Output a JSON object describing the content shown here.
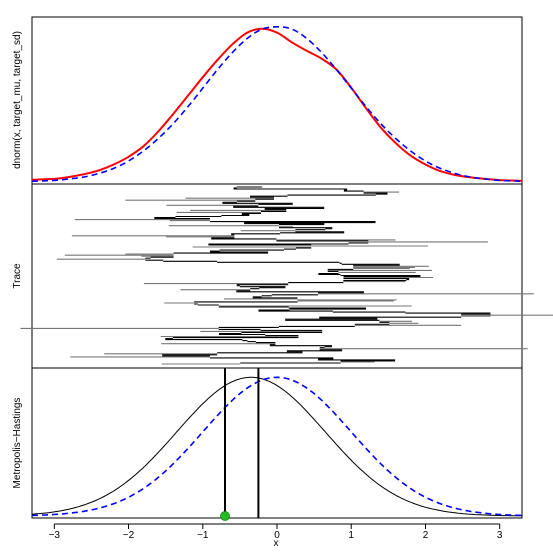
{
  "chart_data": [
    {
      "panel": "top",
      "type": "line",
      "ylabel": "dnorm(x, target_mu, target_sd)",
      "xlim": [
        -3.3,
        3.3
      ],
      "ylim": [
        0,
        0.42
      ],
      "series": [
        {
          "style": "solid",
          "color": "#ff0000",
          "x": [
            -3.3,
            -3.0,
            -2.8,
            -2.6,
            -2.4,
            -2.2,
            -2.0,
            -1.8,
            -1.6,
            -1.4,
            -1.2,
            -1.0,
            -0.8,
            -0.6,
            -0.4,
            -0.2,
            0.0,
            0.2,
            0.4,
            0.6,
            0.8,
            1.0,
            1.2,
            1.4,
            1.6,
            1.8,
            2.0,
            2.2,
            2.4,
            2.6,
            2.8,
            3.0,
            3.3
          ],
          "y": [
            0.006,
            0.008,
            0.013,
            0.02,
            0.03,
            0.045,
            0.065,
            0.092,
            0.13,
            0.175,
            0.222,
            0.27,
            0.315,
            0.355,
            0.385,
            0.395,
            0.385,
            0.36,
            0.338,
            0.318,
            0.29,
            0.243,
            0.19,
            0.14,
            0.1,
            0.068,
            0.045,
            0.028,
            0.018,
            0.012,
            0.008,
            0.005,
            0.003
          ]
        },
        {
          "style": "dashed",
          "color": "#0000ff",
          "x": [
            -3.3,
            -3.0,
            -2.8,
            -2.6,
            -2.4,
            -2.2,
            -2.0,
            -1.8,
            -1.6,
            -1.4,
            -1.2,
            -1.0,
            -0.8,
            -0.6,
            -0.4,
            -0.2,
            0.0,
            0.2,
            0.4,
            0.6,
            0.8,
            1.0,
            1.2,
            1.4,
            1.6,
            1.8,
            2.0,
            2.2,
            2.4,
            2.6,
            2.8,
            3.0,
            3.3
          ],
          "y": [
            0.002,
            0.004,
            0.008,
            0.013,
            0.022,
            0.035,
            0.054,
            0.08,
            0.112,
            0.15,
            0.194,
            0.242,
            0.29,
            0.334,
            0.37,
            0.394,
            0.4,
            0.394,
            0.37,
            0.334,
            0.29,
            0.242,
            0.194,
            0.15,
            0.112,
            0.08,
            0.054,
            0.035,
            0.022,
            0.013,
            0.008,
            0.004,
            0.002
          ]
        }
      ]
    },
    {
      "panel": "middle",
      "type": "line",
      "ylabel": "Trace",
      "xlim": [
        -3.3,
        3.3
      ],
      "grid": false
    },
    {
      "panel": "bottom",
      "type": "line",
      "ylabel": "Metropolis−Hastings",
      "xlabel": "x",
      "xlim": [
        -3.3,
        3.3
      ],
      "ylim": [
        0,
        0.42
      ],
      "xticks": [
        -3,
        -2,
        -1,
        0,
        1,
        2,
        3
      ],
      "xtick_labels": [
        "−3",
        "−2",
        "−1",
        "0",
        "1",
        "2",
        "3"
      ],
      "series": [
        {
          "style": "solid",
          "color": "#000000",
          "mean": -0.35,
          "sd": 1.0
        },
        {
          "style": "dashed",
          "color": "#0000ff",
          "mean": 0.0,
          "sd": 1.0
        }
      ],
      "vlines": [
        -0.7,
        -0.25
      ],
      "point": {
        "x": -0.7,
        "color": "#22bb22"
      }
    }
  ]
}
